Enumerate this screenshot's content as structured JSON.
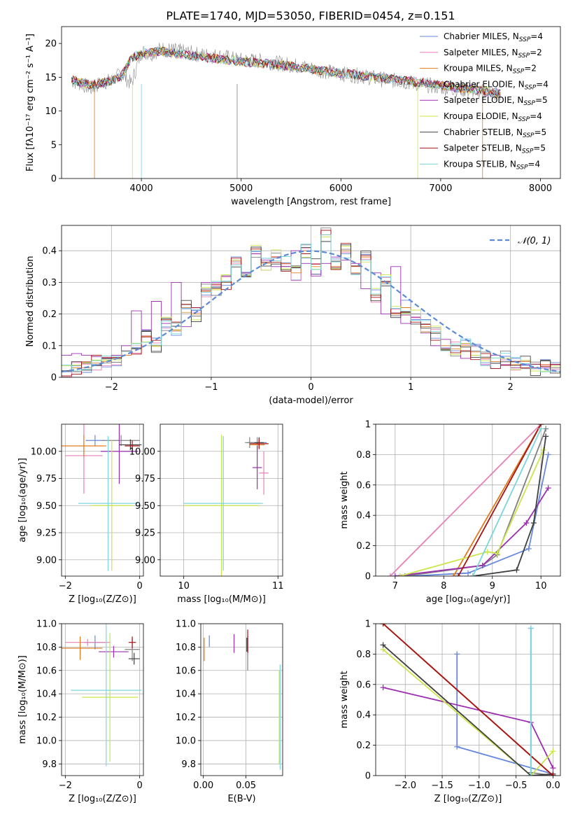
{
  "figure": {
    "title": "PLATE=1740, MJD=53050, FIBERID=0454, z=0.151"
  },
  "models": [
    {
      "name": "Chabrier MILES, N",
      "sub": "SSP",
      "tail": "=4",
      "color": "#6688dd"
    },
    {
      "name": "Salpeter MILES, N",
      "sub": "SSP",
      "tail": "=2",
      "color": "#e87fb5"
    },
    {
      "name": "Kroupa MILES, N",
      "sub": "SSP",
      "tail": "=2",
      "color": "#e07a1f"
    },
    {
      "name": "Chabrier ELODIE, N",
      "sub": "SSP",
      "tail": "=4",
      "color": "#808080"
    },
    {
      "name": "Salpeter ELODIE, N",
      "sub": "SSP",
      "tail": "=5",
      "color": "#9b2fb0"
    },
    {
      "name": "Kroupa ELODIE, N",
      "sub": "SSP",
      "tail": "=4",
      "color": "#c8e64a"
    },
    {
      "name": "Chabrier STELIB, N",
      "sub": "SSP",
      "tail": "=5",
      "color": "#404040"
    },
    {
      "name": "Salpeter STELIB, N",
      "sub": "SSP",
      "tail": "=5",
      "color": "#a51414"
    },
    {
      "name": "Kroupa STELIB, N",
      "sub": "SSP",
      "tail": "=4",
      "color": "#7ad6dc"
    }
  ],
  "chart_data": [
    {
      "id": "spectrum",
      "type": "line",
      "xlabel": "wavelength [Angstrom, rest frame]",
      "ylabel": "Flux [fλ10⁻¹⁷ erg cm⁻² s⁻¹ A⁻¹]",
      "xlim": [
        3200,
        8200
      ],
      "ylim": [
        0,
        22.5
      ],
      "xticks": [
        4000,
        5000,
        6000,
        7000,
        8000
      ],
      "yticks": [
        0,
        5,
        10,
        15,
        20
      ],
      "grid": false,
      "legend": "right",
      "data_series": {
        "name": "data",
        "color": "#8c8c8c",
        "x": [
          3300,
          3400,
          3500,
          3600,
          3700,
          3800,
          3900,
          4000,
          4100,
          4200,
          4400,
          4600,
          4800,
          5000,
          5200,
          5400,
          5600,
          5800,
          6000,
          6200,
          6400,
          6600,
          6800,
          7000,
          7200,
          7400,
          7600
        ],
        "y": [
          14.5,
          14.0,
          13.3,
          14.2,
          14.5,
          15.5,
          14.0,
          18.8,
          18.5,
          19.2,
          18.8,
          18.3,
          18.1,
          17.5,
          17.4,
          17.0,
          16.6,
          16.0,
          15.5,
          15.2,
          14.7,
          14.4,
          14.0,
          13.5,
          13.2,
          12.9,
          12.4
        ]
      },
      "model_curve": {
        "x": [
          3300,
          3500,
          3700,
          3800,
          3900,
          4000,
          4200,
          4400,
          4600,
          4800,
          5000,
          5200,
          5400,
          5600,
          5800,
          6000,
          6200,
          6400,
          6600,
          6800,
          7000,
          7200,
          7400,
          7600
        ],
        "y": [
          14.6,
          13.8,
          14.5,
          15.2,
          17.8,
          18.5,
          18.8,
          18.4,
          18.0,
          17.7,
          17.3,
          17.1,
          16.8,
          16.5,
          16.0,
          15.6,
          15.3,
          14.9,
          14.6,
          14.2,
          13.8,
          13.4,
          13.0,
          12.5
        ]
      }
    },
    {
      "id": "residuals",
      "type": "line",
      "xlabel": "(data-model)/error",
      "ylabel": "Normed distribution",
      "xlim": [
        -2.5,
        2.5
      ],
      "ylim": [
        0,
        0.48
      ],
      "xticks": [
        -2,
        -1,
        0,
        1,
        2
      ],
      "yticks": [
        0.0,
        0.1,
        0.2,
        0.3,
        0.4
      ],
      "grid": true,
      "legend": "top-right",
      "gaussian_label": "𝒩(0, 1)",
      "gaussian_color": "#5b8bd6",
      "hist_bins": [
        -2.5,
        -2.4,
        -2.3,
        -2.2,
        -2.1,
        -2.0,
        -1.9,
        -1.8,
        -1.7,
        -1.6,
        -1.5,
        -1.4,
        -1.3,
        -1.2,
        -1.1,
        -1.0,
        -0.9,
        -0.8,
        -0.7,
        -0.6,
        -0.5,
        -0.4,
        -0.3,
        -0.2,
        -0.1,
        0.0,
        0.1,
        0.2,
        0.3,
        0.4,
        0.5,
        0.6,
        0.7,
        0.8,
        0.9,
        1.0,
        1.1,
        1.2,
        1.3,
        1.4,
        1.5,
        1.6,
        1.7,
        1.8,
        1.9,
        2.0,
        2.1,
        2.2,
        2.3,
        2.4
      ],
      "hist_purple": [
        0.07,
        0.075,
        0.07,
        0.065,
        0.06,
        0.07,
        0.1,
        0.21,
        0.15,
        0.24,
        0.17,
        0.3,
        0.16,
        0.22,
        0.3,
        0.3,
        0.32,
        0.37,
        0.33,
        0.39,
        0.37,
        0.35,
        0.35,
        0.4,
        0.36,
        0.32,
        0.36,
        0.38,
        0.37,
        0.36,
        0.28,
        0.33,
        0.2,
        0.35,
        0.17,
        0.19,
        0.14,
        0.1,
        0.12,
        0.1,
        0.06,
        0.1,
        0.04,
        0.07,
        0.04,
        0.03,
        0.04,
        0.03,
        0.03,
        0.04
      ],
      "hist_orange": [
        0.02,
        0.03,
        0.03,
        0.045,
        0.05,
        0.06,
        0.07,
        0.09,
        0.13,
        0.1,
        0.17,
        0.15,
        0.22,
        0.2,
        0.27,
        0.28,
        0.3,
        0.37,
        0.32,
        0.4,
        0.36,
        0.38,
        0.36,
        0.33,
        0.4,
        0.35,
        0.45,
        0.35,
        0.4,
        0.33,
        0.38,
        0.26,
        0.3,
        0.2,
        0.22,
        0.19,
        0.16,
        0.14,
        0.1,
        0.09,
        0.1,
        0.08,
        0.06,
        0.05,
        0.06,
        0.04,
        0.05,
        0.03,
        0.04,
        0.03
      ]
    },
    {
      "id": "age-vs-Z",
      "type": "scatter",
      "xlabel": "Z [log₁₀(Z/Z⊙)]",
      "ylabel": "age  [log₁₀(age/yr)]",
      "xlim": [
        -2.1,
        0.1
      ],
      "ylim": [
        8.85,
        10.25
      ],
      "xticks": [
        -2,
        0
      ],
      "yticks": [
        9.0,
        9.25,
        9.5,
        9.75,
        10.0
      ],
      "ytick_labels": [
        "9.00",
        "9.25",
        "9.50",
        "9.75",
        "10.00"
      ],
      "grid": true,
      "points": [
        {
          "m": 0,
          "x": -1.2,
          "y": 10.1,
          "xe": 0.25,
          "ye": 0.05
        },
        {
          "m": 1,
          "x": -1.5,
          "y": 9.96,
          "xe": 0.5,
          "ye": 0.35
        },
        {
          "m": 2,
          "x": -1.5,
          "y": 10.05,
          "xe": 0.6,
          "ye": 0.1
        },
        {
          "m": 3,
          "x": -0.5,
          "y": 10.1,
          "xe": 0.5,
          "ye": 0.05
        },
        {
          "m": 4,
          "x": -0.55,
          "y": 10.0,
          "xe": 0.5,
          "ye": 0.3
        },
        {
          "m": 5,
          "x": -0.75,
          "y": 9.5,
          "xe": 0.55,
          "ye": 0.6
        },
        {
          "m": 6,
          "x": -0.25,
          "y": 10.06,
          "xe": 0.3,
          "ye": 0.05
        },
        {
          "m": 7,
          "x": -0.2,
          "y": 10.05,
          "xe": 0.2,
          "ye": 0.05
        },
        {
          "m": 8,
          "x": -0.85,
          "y": 9.52,
          "xe": 0.8,
          "ye": 0.62
        }
      ]
    },
    {
      "id": "age-vs-mass",
      "type": "scatter",
      "xlabel": "mass [log₁₀(M/M⊙)]",
      "ylabel": "",
      "xlim": [
        9.75,
        11.05
      ],
      "ylim": [
        8.85,
        10.25
      ],
      "xticks": [
        10,
        11
      ],
      "yticks": [
        9.0,
        9.25,
        9.5,
        9.75,
        10.0
      ],
      "ytick_labels": [
        "9.00",
        "9.25",
        "9.50",
        "9.75",
        "10.00"
      ],
      "grid": true,
      "points": [
        {
          "m": 0,
          "x": 10.78,
          "y": 10.08,
          "xe": 0.1,
          "ye": 0.05
        },
        {
          "m": 1,
          "x": 10.85,
          "y": 9.8,
          "xe": 0.05,
          "ye": 0.2
        },
        {
          "m": 2,
          "x": 10.78,
          "y": 10.06,
          "xe": 0.08,
          "ye": 0.05
        },
        {
          "m": 3,
          "x": 10.7,
          "y": 10.08,
          "xe": 0.05,
          "ye": 0.05
        },
        {
          "m": 4,
          "x": 10.78,
          "y": 9.85,
          "xe": 0.05,
          "ye": 0.2
        },
        {
          "m": 5,
          "x": 10.4,
          "y": 9.5,
          "xe": 0.4,
          "ye": 0.65
        },
        {
          "m": 6,
          "x": 10.8,
          "y": 10.08,
          "xe": 0.05,
          "ye": 0.05
        },
        {
          "m": 7,
          "x": 10.8,
          "y": 10.07,
          "xe": 0.1,
          "ye": 0.05
        },
        {
          "m": 8,
          "x": 10.42,
          "y": 9.52,
          "xe": 0.42,
          "ye": 0.62
        }
      ]
    },
    {
      "id": "massweight-vs-age",
      "type": "line",
      "xlabel": "age  [log₁₀(age/yr)]",
      "ylabel": "mass weight",
      "xlim": [
        6.6,
        10.4
      ],
      "ylim": [
        0,
        1
      ],
      "xticks": [
        7,
        8,
        9,
        10
      ],
      "yticks": [
        0.0,
        0.2,
        0.4,
        0.6,
        0.8,
        1.0
      ],
      "grid": true,
      "series": [
        {
          "m": 0,
          "x": [
            7.3,
            8.5,
            9.75,
            10.15
          ],
          "y": [
            0.0,
            0.02,
            0.18,
            0.8
          ]
        },
        {
          "m": 1,
          "x": [
            6.9,
            10.0
          ],
          "y": [
            0.0,
            1.0
          ]
        },
        {
          "m": 2,
          "x": [
            8.2,
            10.0
          ],
          "y": [
            0.0,
            1.0
          ]
        },
        {
          "m": 3,
          "x": [
            7.2,
            8.8,
            9.1,
            10.1
          ],
          "y": [
            0.0,
            0.07,
            0.14,
            0.97
          ]
        },
        {
          "m": 4,
          "x": [
            7.0,
            8.8,
            9.7,
            10.15
          ],
          "y": [
            0.0,
            0.07,
            0.35,
            0.58
          ]
        },
        {
          "m": 5,
          "x": [
            7.1,
            8.9,
            9.1,
            10.05
          ],
          "y": [
            0.0,
            0.16,
            0.15,
            0.83
          ]
        },
        {
          "m": 6,
          "x": [
            8.6,
            9.5,
            9.85,
            10.1
          ],
          "y": [
            0.0,
            0.04,
            0.35,
            0.92
          ]
        },
        {
          "m": 7,
          "x": [
            8.3,
            10.0
          ],
          "y": [
            0.0,
            1.0
          ]
        },
        {
          "m": 8,
          "x": [
            8.6,
            10.0
          ],
          "y": [
            0.0,
            0.97
          ]
        }
      ]
    },
    {
      "id": "mass-vs-Z",
      "type": "scatter",
      "xlabel": "Z [log₁₀(Z/Z⊙)]",
      "ylabel": "mass [log₁₀(M/M⊙)]",
      "xlim": [
        -2.1,
        0.1
      ],
      "ylim": [
        9.7,
        11.0
      ],
      "xticks": [
        -2,
        0
      ],
      "yticks": [
        9.8,
        10.0,
        10.2,
        10.4,
        10.6,
        10.8,
        11.0
      ],
      "ytick_labels": [
        "9.8",
        "10.0",
        "10.2",
        "10.4",
        "10.6",
        "10.8",
        "11.0"
      ],
      "grid": true,
      "points": [
        {
          "m": 0,
          "x": -1.2,
          "y": 10.84,
          "xe": 0.3,
          "ye": 0.06
        },
        {
          "m": 1,
          "x": -1.4,
          "y": 10.84,
          "xe": 0.6,
          "ye": 0.03
        },
        {
          "m": 2,
          "x": -1.6,
          "y": 10.79,
          "xe": 0.6,
          "ye": 0.1
        },
        {
          "m": 3,
          "x": -0.2,
          "y": 10.78,
          "xe": 0.2,
          "ye": 0.1
        },
        {
          "m": 4,
          "x": -0.7,
          "y": 10.76,
          "xe": 0.4,
          "ye": 0.05
        },
        {
          "m": 5,
          "x": -0.8,
          "y": 10.37,
          "xe": 0.75,
          "ye": 0.55
        },
        {
          "m": 6,
          "x": -0.15,
          "y": 10.7,
          "xe": 0.15,
          "ye": 0.05
        },
        {
          "m": 7,
          "x": -0.2,
          "y": 10.84,
          "xe": 0.1,
          "ye": 0.05
        },
        {
          "m": 8,
          "x": -0.9,
          "y": 10.43,
          "xe": 0.95,
          "ye": 0.65
        }
      ]
    },
    {
      "id": "mass-vs-EBV",
      "type": "scatter",
      "xlabel": "E(B-V)",
      "ylabel": "",
      "xlim": [
        -0.003,
        0.093
      ],
      "ylim": [
        9.7,
        11.0
      ],
      "xticks": [
        0.0,
        0.05
      ],
      "xtick_labels": [
        "0.00",
        "0.05"
      ],
      "yticks": [
        9.8,
        10.0,
        10.2,
        10.4,
        10.6,
        10.8,
        11.0
      ],
      "ytick_labels": [
        "9.8",
        "10.0",
        "10.2",
        "10.4",
        "10.6",
        "10.8",
        "11.0"
      ],
      "grid": true,
      "points": [
        {
          "m": 0,
          "x": 0.007,
          "y": 10.85,
          "xe": 0.0,
          "ye": 0.05
        },
        {
          "m": 1,
          "x": 0.052,
          "y": 10.82,
          "xe": 0.0,
          "ye": 0.06
        },
        {
          "m": 2,
          "x": 0.001,
          "y": 10.78,
          "xe": 0.0,
          "ye": 0.1
        },
        {
          "m": 3,
          "x": 0.052,
          "y": 10.75,
          "xe": 0.0,
          "ye": 0.15
        },
        {
          "m": 4,
          "x": 0.036,
          "y": 10.83,
          "xe": 0.0,
          "ye": 0.08
        },
        {
          "m": 5,
          "x": 0.089,
          "y": 10.2,
          "xe": 0.0,
          "ye": 0.4
        },
        {
          "m": 6,
          "x": 0.051,
          "y": 10.82,
          "xe": 0.0,
          "ye": 0.06
        },
        {
          "m": 7,
          "x": 0.052,
          "y": 10.85,
          "xe": 0.0,
          "ye": 0.1
        },
        {
          "m": 8,
          "x": 0.09,
          "y": 10.2,
          "xe": 0.0,
          "ye": 0.45
        }
      ]
    },
    {
      "id": "massweight-vs-Z",
      "type": "line",
      "xlabel": "Z [log₁₀(Z/Z⊙)]",
      "ylabel": "mass weight",
      "xlim": [
        -2.4,
        0.1
      ],
      "ylim": [
        0,
        1
      ],
      "xticks": [
        -2.0,
        -1.5,
        -1.0,
        -0.5,
        0.0
      ],
      "xtick_labels": [
        "−2.0",
        "−1.5",
        "−1.0",
        "−0.5",
        "0.0"
      ],
      "yticks": [
        0.0,
        0.2,
        0.4,
        0.6,
        0.8,
        1.0
      ],
      "grid": true,
      "series": [
        {
          "m": 0,
          "x": [
            -1.3,
            -1.3,
            0.0
          ],
          "y": [
            0.8,
            0.19,
            0.01
          ]
        },
        {
          "m": 1,
          "x": [
            -2.3,
            0.0
          ],
          "y": [
            1.0,
            0.0
          ]
        },
        {
          "m": 2,
          "x": [
            -2.3,
            0.0
          ],
          "y": [
            1.0,
            0.0
          ]
        },
        {
          "m": 3,
          "x": [
            -0.3,
            -0.3,
            0.0
          ],
          "y": [
            0.97,
            0.02,
            0.0
          ]
        },
        {
          "m": 4,
          "x": [
            -2.3,
            -0.3,
            0.0
          ],
          "y": [
            0.58,
            0.35,
            0.05
          ]
        },
        {
          "m": 5,
          "x": [
            -2.3,
            -0.3,
            0.0
          ],
          "y": [
            0.83,
            0.0,
            0.16
          ]
        },
        {
          "m": 6,
          "x": [
            -2.3,
            -0.3,
            0.0
          ],
          "y": [
            0.86,
            0.0,
            0.01
          ]
        },
        {
          "m": 7,
          "x": [
            -2.3,
            0.0
          ],
          "y": [
            1.0,
            0.0
          ]
        },
        {
          "m": 8,
          "x": [
            -0.3,
            -0.3
          ],
          "y": [
            0.97,
            0.0
          ]
        }
      ]
    }
  ]
}
